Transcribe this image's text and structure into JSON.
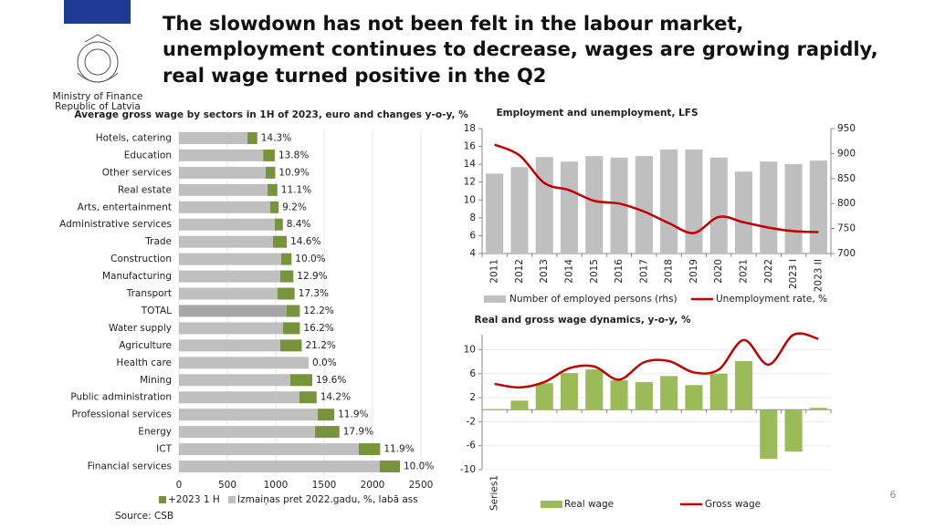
{
  "header": {
    "title_lines": [
      "The slowdown has not been felt in the labour market,",
      "unemployment continues to decrease, wages are growing rapidly,",
      "real wage turned positive in the Q2"
    ],
    "ministry": [
      "Ministry of Finance",
      "Republic of Latvia"
    ]
  },
  "source": "Source: CSB",
  "page_number": "6",
  "chart_data": [
    {
      "type": "stacked_barh",
      "title": "Average gross wage by sectors in 1H of 2023, euro and changes y-o-y, %",
      "categories": [
        "Hotels, catering",
        "Education",
        "Other services",
        "Real estate",
        "Arts, entertainment",
        "Administrative services",
        "Trade",
        "Construction",
        "Manufacturing",
        "Transport",
        "TOTAL",
        "Water supply",
        "Agriculture",
        "Health care",
        "Mining",
        "Public administration",
        "Professional services",
        "Energy",
        "ICT",
        "Financial services"
      ],
      "series": [
        {
          "name": "Izmaiņas pret 2022.gadu, %, labā ass",
          "color": "#bfbfbf",
          "values": [
            708,
            870,
            896,
            915,
            943,
            990,
            972,
            1057,
            1047,
            1019,
            1113,
            1075,
            1047,
            1340,
            1151,
            1245,
            1434,
            1406,
            1858,
            2075
          ]
        },
        {
          "name": "+2023 1 H",
          "color": "#77933c",
          "values": [
            101,
            120,
            98,
            102,
            87,
            83,
            142,
            106,
            135,
            176,
            136,
            174,
            222,
            0,
            226,
            177,
            171,
            252,
            221,
            208
          ]
        }
      ],
      "change_labels": [
        "14.3%",
        "13.8%",
        "10.9%",
        "11.1%",
        "9.2%",
        "8.4%",
        "14.6%",
        "10.0%",
        "12.9%",
        "17.3%",
        "12.2%",
        "16.2%",
        "21.2%",
        "0.0%",
        "19.6%",
        "14.2%",
        "11.9%",
        "17.9%",
        "11.9%",
        "10.0%"
      ],
      "highlight": "TOTAL",
      "highlight_color": "#a6a6a6",
      "xlim": [
        0,
        2500
      ],
      "xticks": [
        0,
        500,
        1000,
        1500,
        2000,
        2500
      ],
      "grid": true
    },
    {
      "type": "bar_line",
      "title": "Employment and unemployment, LFS",
      "categories": [
        "2011",
        "2012",
        "2013",
        "2014",
        "2015",
        "2016",
        "2017",
        "2018",
        "2019",
        "2020",
        "2021",
        "2022",
        "2023 I",
        "2023 II"
      ],
      "series": [
        {
          "name": "Number of employed persons (rhs)",
          "type": "bar",
          "axis": "y2",
          "color": "#bfbfbf",
          "values": [
            860,
            873,
            893,
            884,
            895,
            892,
            895,
            908,
            908,
            892,
            864,
            884,
            879,
            886
          ]
        },
        {
          "name": "Unemployment rate, %",
          "type": "line",
          "color": "#c00000",
          "values": [
            16.2,
            15.0,
            11.9,
            11.1,
            9.9,
            9.6,
            8.7,
            7.4,
            6.3,
            8.1,
            7.5,
            6.9,
            6.5,
            6.4
          ]
        }
      ],
      "ylim": [
        4,
        18
      ],
      "yticks": [
        4,
        6,
        8,
        10,
        12,
        14,
        16,
        18
      ],
      "y2lim": [
        700,
        950
      ],
      "y2ticks": [
        700,
        750,
        800,
        850,
        900,
        950
      ],
      "grid": false
    },
    {
      "type": "bar_line",
      "title": "Real and gross wage dynamics, y-o-y, %",
      "categories": [
        "Series1",
        null,
        null,
        null,
        null,
        null,
        null,
        null,
        null,
        null,
        null,
        null,
        null,
        null
      ],
      "series": [
        {
          "name": "Real wage",
          "type": "bar",
          "color": "#9bbb59",
          "values": [
            0.1,
            1.5,
            4.4,
            6.1,
            6.7,
            4.9,
            4.6,
            5.6,
            4.1,
            6.0,
            8.1,
            -8.2,
            -7.0,
            0.3
          ]
        },
        {
          "name": "Gross wage",
          "type": "line",
          "color": "#c00000",
          "values": [
            4.3,
            3.7,
            4.6,
            6.9,
            7.2,
            5.0,
            7.9,
            8.1,
            6.2,
            6.7,
            11.6,
            7.5,
            12.5,
            11.8
          ]
        }
      ],
      "ylim": [
        -10,
        12.5
      ],
      "yticks": [
        -10,
        -6,
        -2,
        2,
        6,
        10
      ],
      "grid": true
    }
  ]
}
